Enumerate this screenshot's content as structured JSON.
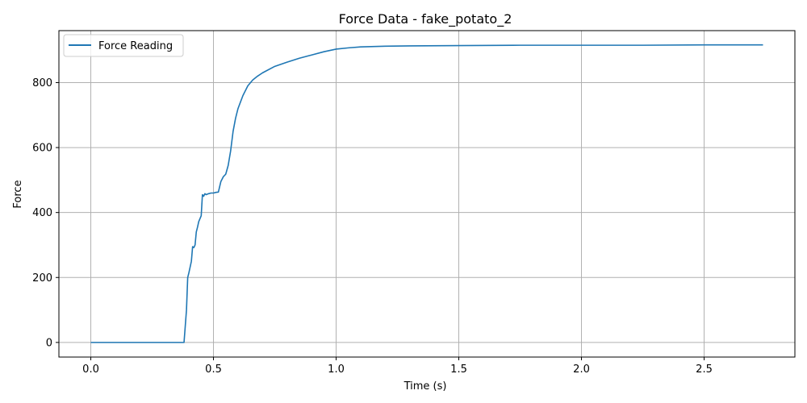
{
  "chart_data": {
    "type": "line",
    "title": "Force Data - fake_potato_2",
    "xlabel": "Time (s)",
    "ylabel": "Force",
    "xlim": [
      -0.13,
      2.87
    ],
    "ylim": [
      -45,
      960
    ],
    "xticks": [
      0.0,
      0.5,
      1.0,
      1.5,
      2.0,
      2.5
    ],
    "xtick_labels": [
      "0.0",
      "0.5",
      "1.0",
      "1.5",
      "2.0",
      "2.5"
    ],
    "yticks": [
      0,
      200,
      400,
      600,
      800
    ],
    "ytick_labels": [
      "0",
      "200",
      "400",
      "600",
      "800"
    ],
    "grid": true,
    "legend_position": "upper-left",
    "series": [
      {
        "name": "Force Reading",
        "color": "#1f77b4",
        "x": [
          0.0,
          0.1,
          0.2,
          0.3,
          0.38,
          0.385,
          0.39,
          0.395,
          0.4,
          0.41,
          0.415,
          0.42,
          0.425,
          0.43,
          0.435,
          0.44,
          0.45,
          0.455,
          0.46,
          0.465,
          0.47,
          0.48,
          0.49,
          0.5,
          0.51,
          0.52,
          0.53,
          0.54,
          0.55,
          0.56,
          0.57,
          0.58,
          0.59,
          0.6,
          0.62,
          0.64,
          0.66,
          0.68,
          0.7,
          0.75,
          0.8,
          0.85,
          0.9,
          0.95,
          1.0,
          1.05,
          1.1,
          1.2,
          1.3,
          1.5,
          1.75,
          2.0,
          2.25,
          2.5,
          2.74
        ],
        "y": [
          0,
          0,
          0,
          0,
          0,
          50,
          100,
          200,
          215,
          250,
          295,
          292,
          300,
          340,
          355,
          372,
          390,
          455,
          450,
          458,
          455,
          458,
          460,
          460,
          462,
          463,
          495,
          510,
          518,
          545,
          590,
          650,
          690,
          720,
          760,
          790,
          808,
          820,
          830,
          850,
          863,
          875,
          885,
          895,
          903,
          907,
          910,
          912,
          913,
          914,
          915,
          915,
          915,
          916,
          916
        ]
      }
    ]
  }
}
